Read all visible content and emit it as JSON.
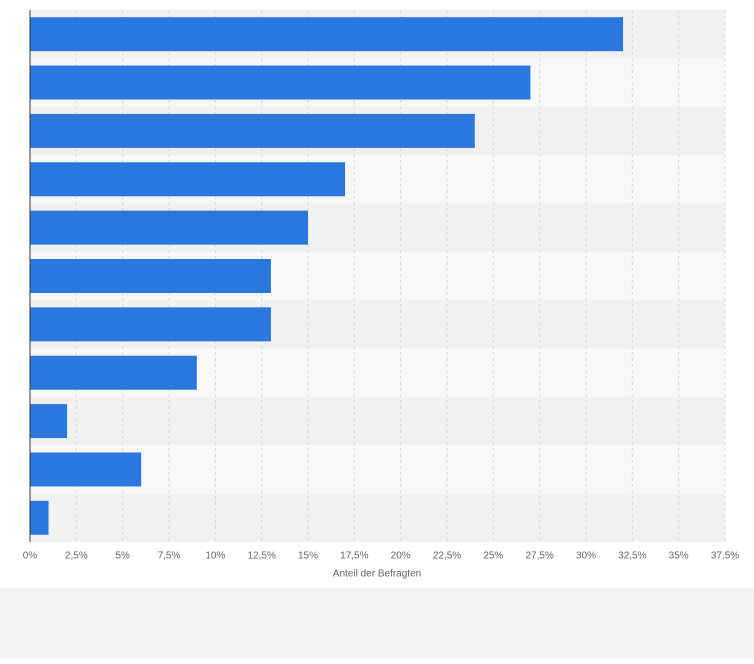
{
  "chart_data": {
    "type": "bar",
    "orientation": "horizontal",
    "x_label": "Anteil der Befragten",
    "categories": [
      null,
      null,
      null,
      null,
      null,
      null,
      null,
      null,
      null,
      null,
      null
    ],
    "values": [
      32,
      27,
      24,
      17,
      15,
      13,
      13,
      9,
      2,
      6,
      1
    ],
    "color": "#2a77dd",
    "xlim": [
      0,
      37.5
    ],
    "xticks": [
      {
        "value": 0,
        "label": "0%"
      },
      {
        "value": 2.5,
        "label": "2,5%"
      },
      {
        "value": 5,
        "label": "5%"
      },
      {
        "value": 7.5,
        "label": "7,5%"
      },
      {
        "value": 10,
        "label": "10%"
      },
      {
        "value": 12.5,
        "label": "12,5%"
      },
      {
        "value": 15,
        "label": "15%"
      },
      {
        "value": 17.5,
        "label": "17,5%"
      },
      {
        "value": 20,
        "label": "20%"
      },
      {
        "value": 22.5,
        "label": "22,5%"
      },
      {
        "value": 25,
        "label": "25%"
      },
      {
        "value": 27.5,
        "label": "27,5%"
      },
      {
        "value": 30,
        "label": "30%"
      },
      {
        "value": 32.5,
        "label": "32,5%"
      },
      {
        "value": 35,
        "label": "35%"
      },
      {
        "value": 37.5,
        "label": "37,5%"
      }
    ],
    "grid": true
  }
}
